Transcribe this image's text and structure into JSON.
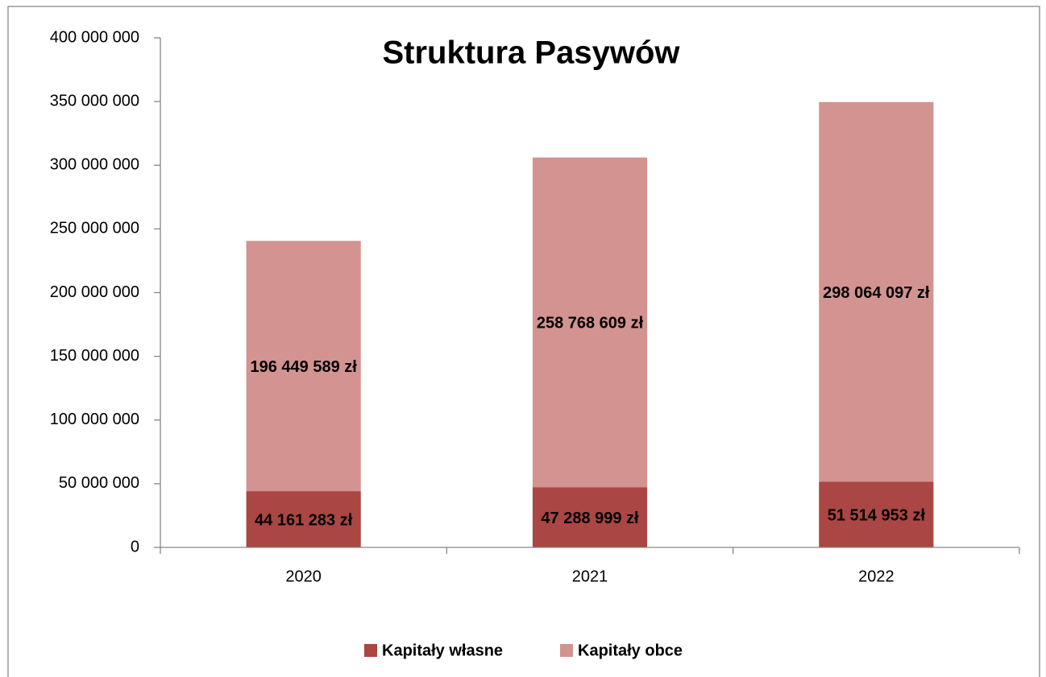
{
  "chart_data": {
    "type": "stacked_bar",
    "title": "Struktura Pasywów",
    "categories": [
      "2020",
      "2021",
      "2022"
    ],
    "series": [
      {
        "name": "Kapitały własne",
        "color": "#aa4643",
        "values": [
          44161283,
          47288999,
          51514953
        ],
        "value_labels": [
          "44 161 283 zł",
          "47 288 999 zł",
          "51 514 953 zł"
        ]
      },
      {
        "name": "Kapitały obce",
        "color": "#d29391",
        "values": [
          196449589,
          258768609,
          298064097
        ],
        "value_labels": [
          "196 449 589 zł",
          "258 768 609 zł",
          "298 064 097 zł"
        ]
      }
    ],
    "ylim": [
      0,
      400000000
    ],
    "yticks": [
      0,
      {
        "value": 50000000,
        "label": "50 000 000"
      },
      {
        "value": 100000000,
        "label": "100 000 000"
      },
      {
        "value": 150000000,
        "label": "150 000 000"
      },
      {
        "value": 200000000,
        "label": "200 000 000"
      },
      {
        "value": 250000000,
        "label": "250 000 000"
      },
      {
        "value": 300000000,
        "label": "300 000 000"
      },
      {
        "value": 350000000,
        "label": "350 000 000"
      },
      {
        "value": 400000000,
        "label": "400 000 000"
      }
    ],
    "legend": "bottom"
  }
}
